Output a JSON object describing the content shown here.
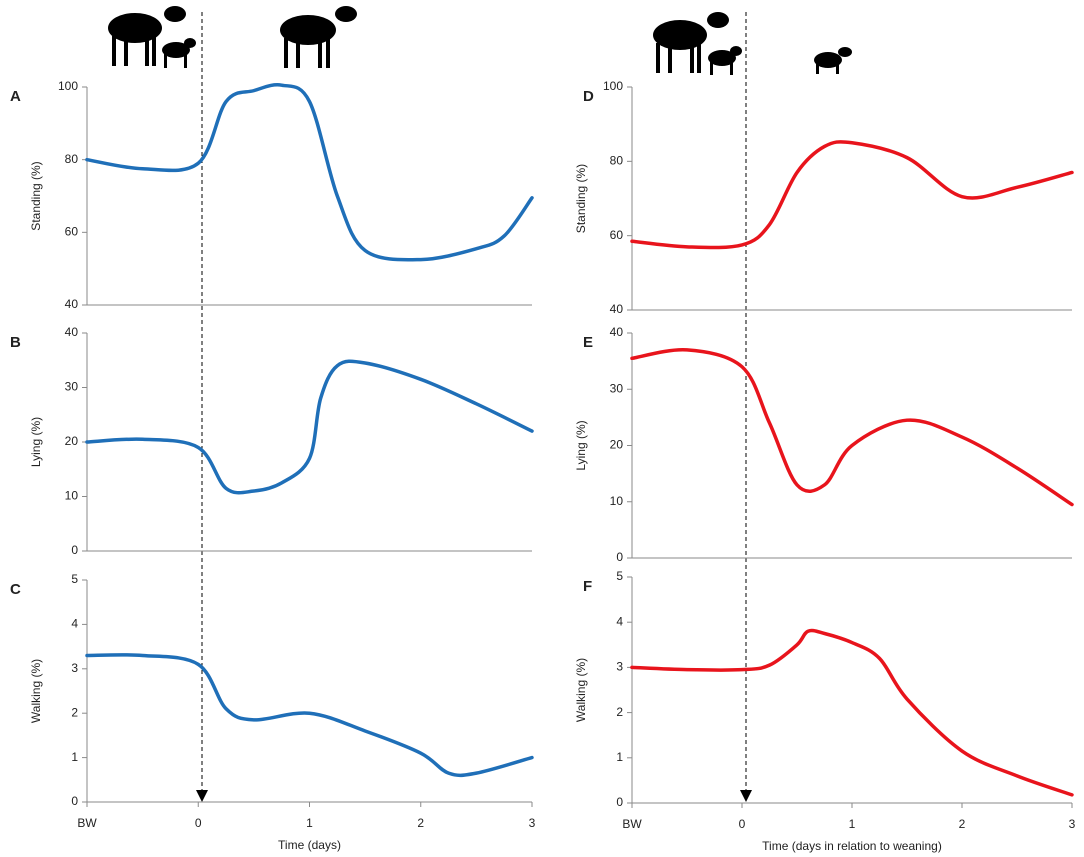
{
  "chart_data": [
    {
      "type": "line",
      "title": "A",
      "ylabel": "Standing (%)",
      "color": "#1f6fb8",
      "x": [
        -1,
        -0.5,
        0,
        0.25,
        0.5,
        0.75,
        1,
        1.25,
        1.5,
        2,
        2.5,
        2.75,
        3
      ],
      "values": [
        80,
        77.5,
        79,
        96,
        99,
        100.5,
        96,
        70,
        55,
        52.5,
        55.5,
        59,
        69.5
      ],
      "xlim": [
        -1,
        3
      ],
      "ylim": [
        40,
        100
      ],
      "yticks": [
        40,
        60,
        80,
        100
      ]
    },
    {
      "type": "line",
      "title": "B",
      "ylabel": "Lying (%)",
      "color": "#1f6fb8",
      "x": [
        -1,
        -0.5,
        0,
        0.25,
        0.5,
        0.75,
        1,
        1.1,
        1.25,
        1.5,
        2,
        2.5,
        3
      ],
      "values": [
        20,
        20.5,
        19,
        11.5,
        11,
        12.5,
        17,
        28,
        34,
        34.5,
        31.5,
        27,
        22
      ],
      "xlim": [
        -1,
        3
      ],
      "ylim": [
        0,
        40
      ],
      "yticks": [
        0,
        10,
        20,
        30,
        40
      ]
    },
    {
      "type": "line",
      "title": "C",
      "ylabel": "Walking (%)",
      "xlabel": "Time (days)",
      "color": "#1f6fb8",
      "x": [
        -1,
        -0.5,
        0,
        0.25,
        0.5,
        1,
        1.5,
        2,
        2.25,
        2.5,
        3
      ],
      "values": [
        3.3,
        3.3,
        3.1,
        2.1,
        1.85,
        2.0,
        1.6,
        1.1,
        0.65,
        0.65,
        1.0
      ],
      "xlim": [
        -1,
        3
      ],
      "xticks": [
        {
          "value": -1,
          "label": "BW"
        },
        0,
        1,
        2,
        3
      ],
      "ylim": [
        0,
        5
      ],
      "yticks": [
        0,
        1,
        2,
        3,
        4,
        5
      ]
    },
    {
      "type": "line",
      "title": "D",
      "ylabel": "Standing (%)",
      "color": "#e8141c",
      "x": [
        -1,
        -0.5,
        0,
        0.25,
        0.5,
        0.75,
        1,
        1.5,
        2,
        2.5,
        3
      ],
      "values": [
        58.5,
        57,
        57.5,
        63,
        77,
        84,
        85,
        81,
        70.5,
        73,
        77
      ],
      "xlim": [
        -1,
        3
      ],
      "ylim": [
        40,
        100
      ],
      "yticks": [
        40,
        60,
        80,
        100
      ]
    },
    {
      "type": "line",
      "title": "E",
      "ylabel": "Lying (%)",
      "color": "#e8141c",
      "x": [
        -1,
        -0.5,
        0,
        0.25,
        0.5,
        0.75,
        1,
        1.5,
        2,
        2.5,
        3
      ],
      "values": [
        35.5,
        37,
        34,
        24,
        13,
        13,
        20,
        24.5,
        21.5,
        16,
        9.5
      ],
      "xlim": [
        -1,
        3
      ],
      "ylim": [
        0,
        40
      ],
      "yticks": [
        0,
        10,
        20,
        30,
        40
      ]
    },
    {
      "type": "line",
      "title": "F",
      "ylabel": "Walking (%)",
      "xlabel": "Time (days in relation to weaning)",
      "color": "#e8141c",
      "x": [
        -1,
        -0.5,
        0,
        0.25,
        0.5,
        0.6,
        0.75,
        1,
        1.25,
        1.5,
        2,
        2.5,
        3
      ],
      "values": [
        3.0,
        2.95,
        2.95,
        3.05,
        3.5,
        3.8,
        3.75,
        3.55,
        3.2,
        2.3,
        1.15,
        0.6,
        0.18
      ],
      "xlim": [
        -1,
        3
      ],
      "xticks": [
        {
          "value": -1,
          "label": "BW"
        },
        0,
        1,
        2,
        3
      ],
      "ylim": [
        0,
        5
      ],
      "yticks": [
        0,
        1,
        2,
        3,
        4,
        5
      ]
    }
  ]
}
